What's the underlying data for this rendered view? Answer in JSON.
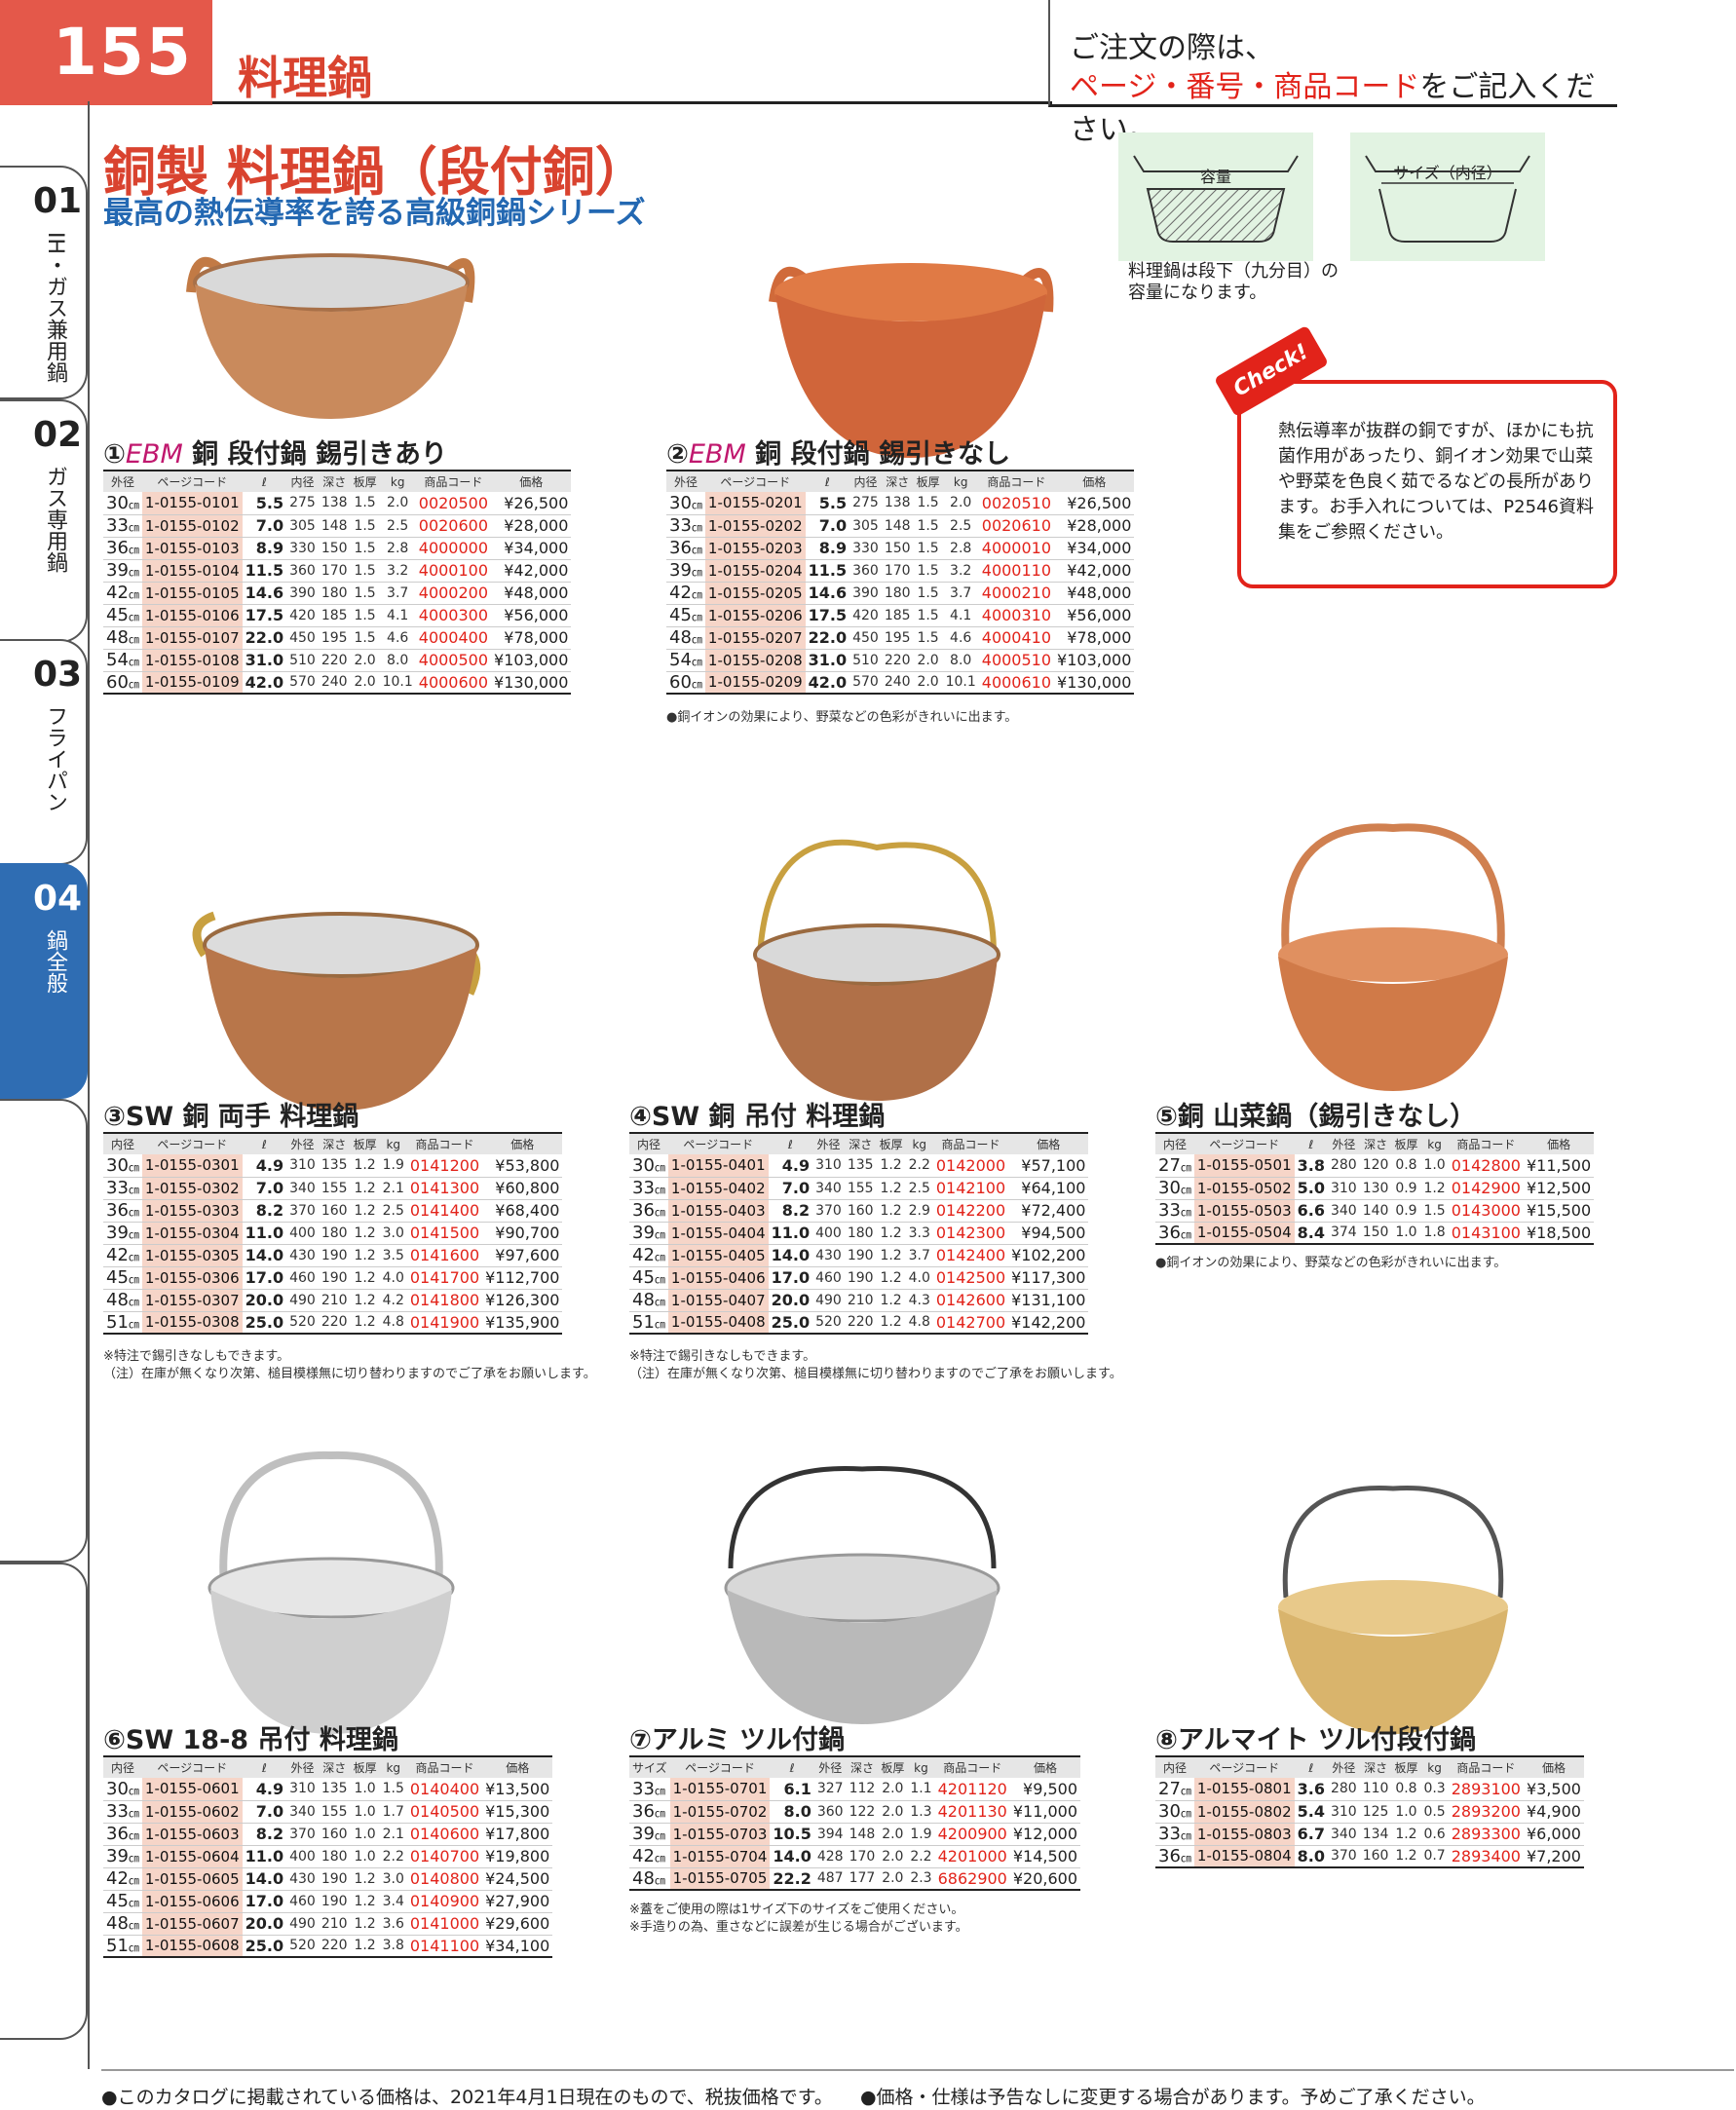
{
  "header": {
    "page_number": "155",
    "category": "料理鍋",
    "order_line1": "ご注文の際は、",
    "order_line2_red": "ページ・番号・商品コード",
    "order_line2_rest": "をご記入ください。"
  },
  "section": {
    "title": "銅製 料理鍋（段付銅）",
    "subtitle": "最高の熱伝導率を誇る高級銅鍋シリーズ"
  },
  "tabs": [
    {
      "num": "01",
      "label": "IH・ガス兼用鍋"
    },
    {
      "num": "02",
      "label": "ガス専用鍋"
    },
    {
      "num": "03",
      "label": "フライパン"
    },
    {
      "num": "04",
      "label": "鍋全般"
    }
  ],
  "diagrams": {
    "capacity_label": "容量",
    "size_label": "サイズ（内径）",
    "note": "料理鍋は段下（九分目）の容量になります。"
  },
  "check": {
    "badge": "Check!",
    "text": "熱伝導率が抜群の銅ですが、ほかにも抗菌作用があったり、銅イオン効果で山菜や野菜を色良く茹でるなどの長所があります。お手入れについては、P2546資料集をご参照ください。"
  },
  "headers": {
    "outer": "外径",
    "inner": "内径",
    "size": "サイズ",
    "page_code": "ページコード",
    "cap": "ℓ",
    "outer2": "外径",
    "inner2": "内径",
    "depth": "深さ",
    "thick": "板厚",
    "kg": "kg",
    "code": "商品コード",
    "price": "価格",
    "cm": "㎝"
  },
  "products": [
    {
      "no": "①",
      "brand": "EBM",
      "name": " 銅 段付鍋 錫引きあり",
      "h1": "外径",
      "h3": "内径",
      "rows": [
        [
          "30",
          "1-0155-0101",
          "5.5",
          "275",
          "138",
          "1.5",
          "2.0",
          "0020500",
          "¥26,500"
        ],
        [
          "33",
          "1-0155-0102",
          "7.0",
          "305",
          "148",
          "1.5",
          "2.5",
          "0020600",
          "¥28,000"
        ],
        [
          "36",
          "1-0155-0103",
          "8.9",
          "330",
          "150",
          "1.5",
          "2.8",
          "4000000",
          "¥34,000"
        ],
        [
          "39",
          "1-0155-0104",
          "11.5",
          "360",
          "170",
          "1.5",
          "3.2",
          "4000100",
          "¥42,000"
        ],
        [
          "42",
          "1-0155-0105",
          "14.6",
          "390",
          "180",
          "1.5",
          "3.7",
          "4000200",
          "¥48,000"
        ],
        [
          "45",
          "1-0155-0106",
          "17.5",
          "420",
          "185",
          "1.5",
          "4.1",
          "4000300",
          "¥56,000"
        ],
        [
          "48",
          "1-0155-0107",
          "22.0",
          "450",
          "195",
          "1.5",
          "4.6",
          "4000400",
          "¥78,000"
        ],
        [
          "54",
          "1-0155-0108",
          "31.0",
          "510",
          "220",
          "2.0",
          "8.0",
          "4000500",
          "¥103,000"
        ],
        [
          "60",
          "1-0155-0109",
          "42.0",
          "570",
          "240",
          "2.0",
          "10.1",
          "4000600",
          "¥130,000"
        ]
      ],
      "notes": []
    },
    {
      "no": "②",
      "brand": "EBM",
      "name": " 銅 段付鍋 錫引きなし",
      "h1": "外径",
      "h3": "内径",
      "rows": [
        [
          "30",
          "1-0155-0201",
          "5.5",
          "275",
          "138",
          "1.5",
          "2.0",
          "0020510",
          "¥26,500"
        ],
        [
          "33",
          "1-0155-0202",
          "7.0",
          "305",
          "148",
          "1.5",
          "2.5",
          "0020610",
          "¥28,000"
        ],
        [
          "36",
          "1-0155-0203",
          "8.9",
          "330",
          "150",
          "1.5",
          "2.8",
          "4000010",
          "¥34,000"
        ],
        [
          "39",
          "1-0155-0204",
          "11.5",
          "360",
          "170",
          "1.5",
          "3.2",
          "4000110",
          "¥42,000"
        ],
        [
          "42",
          "1-0155-0205",
          "14.6",
          "390",
          "180",
          "1.5",
          "3.7",
          "4000210",
          "¥48,000"
        ],
        [
          "45",
          "1-0155-0206",
          "17.5",
          "420",
          "185",
          "1.5",
          "4.1",
          "4000310",
          "¥56,000"
        ],
        [
          "48",
          "1-0155-0207",
          "22.0",
          "450",
          "195",
          "1.5",
          "4.6",
          "4000410",
          "¥78,000"
        ],
        [
          "54",
          "1-0155-0208",
          "31.0",
          "510",
          "220",
          "2.0",
          "8.0",
          "4000510",
          "¥103,000"
        ],
        [
          "60",
          "1-0155-0209",
          "42.0",
          "570",
          "240",
          "2.0",
          "10.1",
          "4000610",
          "¥130,000"
        ]
      ],
      "notes": [
        "●銅イオンの効果により、野菜などの色彩がきれいに出ます。"
      ]
    },
    {
      "no": "③",
      "brand": "",
      "name": "SW 銅 両手 料理鍋",
      "h1": "内径",
      "h3": "外径",
      "rows": [
        [
          "30",
          "1-0155-0301",
          "4.9",
          "310",
          "135",
          "1.2",
          "1.9",
          "0141200",
          "¥53,800"
        ],
        [
          "33",
          "1-0155-0302",
          "7.0",
          "340",
          "155",
          "1.2",
          "2.1",
          "0141300",
          "¥60,800"
        ],
        [
          "36",
          "1-0155-0303",
          "8.2",
          "370",
          "160",
          "1.2",
          "2.5",
          "0141400",
          "¥68,400"
        ],
        [
          "39",
          "1-0155-0304",
          "11.0",
          "400",
          "180",
          "1.2",
          "3.0",
          "0141500",
          "¥90,700"
        ],
        [
          "42",
          "1-0155-0305",
          "14.0",
          "430",
          "190",
          "1.2",
          "3.5",
          "0141600",
          "¥97,600"
        ],
        [
          "45",
          "1-0155-0306",
          "17.0",
          "460",
          "190",
          "1.2",
          "4.0",
          "0141700",
          "¥112,700"
        ],
        [
          "48",
          "1-0155-0307",
          "20.0",
          "490",
          "210",
          "1.2",
          "4.2",
          "0141800",
          "¥126,300"
        ],
        [
          "51",
          "1-0155-0308",
          "25.0",
          "520",
          "220",
          "1.2",
          "4.8",
          "0141900",
          "¥135,900"
        ]
      ],
      "notes": [
        "※特注で錫引きなしもできます。",
        "（注）在庫が無くなり次第、槌目模様無に切り替わりますのでご了承をお願いします。"
      ]
    },
    {
      "no": "④",
      "brand": "",
      "name": "SW 銅 吊付 料理鍋",
      "h1": "内径",
      "h3": "外径",
      "rows": [
        [
          "30",
          "1-0155-0401",
          "4.9",
          "310",
          "135",
          "1.2",
          "2.2",
          "0142000",
          "¥57,100"
        ],
        [
          "33",
          "1-0155-0402",
          "7.0",
          "340",
          "155",
          "1.2",
          "2.5",
          "0142100",
          "¥64,100"
        ],
        [
          "36",
          "1-0155-0403",
          "8.2",
          "370",
          "160",
          "1.2",
          "2.9",
          "0142200",
          "¥72,400"
        ],
        [
          "39",
          "1-0155-0404",
          "11.0",
          "400",
          "180",
          "1.2",
          "3.3",
          "0142300",
          "¥94,500"
        ],
        [
          "42",
          "1-0155-0405",
          "14.0",
          "430",
          "190",
          "1.2",
          "3.7",
          "0142400",
          "¥102,200"
        ],
        [
          "45",
          "1-0155-0406",
          "17.0",
          "460",
          "190",
          "1.2",
          "4.0",
          "0142500",
          "¥117,300"
        ],
        [
          "48",
          "1-0155-0407",
          "20.0",
          "490",
          "210",
          "1.2",
          "4.3",
          "0142600",
          "¥131,100"
        ],
        [
          "51",
          "1-0155-0408",
          "25.0",
          "520",
          "220",
          "1.2",
          "4.8",
          "0142700",
          "¥142,200"
        ]
      ],
      "notes": [
        "※特注で錫引きなしもできます。",
        "（注）在庫が無くなり次第、槌目模様無に切り替わりますのでご了承をお願いします。"
      ]
    },
    {
      "no": "⑤",
      "brand": "",
      "name": "銅 山菜鍋（錫引きなし）",
      "h1": "内径",
      "h3": "外径",
      "rows": [
        [
          "27",
          "1-0155-0501",
          "3.8",
          "280",
          "120",
          "0.8",
          "1.0",
          "0142800",
          "¥11,500"
        ],
        [
          "30",
          "1-0155-0502",
          "5.0",
          "310",
          "130",
          "0.9",
          "1.2",
          "0142900",
          "¥12,500"
        ],
        [
          "33",
          "1-0155-0503",
          "6.6",
          "340",
          "140",
          "0.9",
          "1.5",
          "0143000",
          "¥15,500"
        ],
        [
          "36",
          "1-0155-0504",
          "8.4",
          "374",
          "150",
          "1.0",
          "1.8",
          "0143100",
          "¥18,500"
        ]
      ],
      "notes": [
        "●銅イオンの効果により、野菜などの色彩がきれいに出ます。"
      ]
    },
    {
      "no": "⑥",
      "brand": "",
      "name": "SW 18-8 吊付 料理鍋",
      "h1": "内径",
      "h3": "外径",
      "rows": [
        [
          "30",
          "1-0155-0601",
          "4.9",
          "310",
          "135",
          "1.0",
          "1.5",
          "0140400",
          "¥13,500"
        ],
        [
          "33",
          "1-0155-0602",
          "7.0",
          "340",
          "155",
          "1.0",
          "1.7",
          "0140500",
          "¥15,300"
        ],
        [
          "36",
          "1-0155-0603",
          "8.2",
          "370",
          "160",
          "1.0",
          "2.1",
          "0140600",
          "¥17,800"
        ],
        [
          "39",
          "1-0155-0604",
          "11.0",
          "400",
          "180",
          "1.0",
          "2.2",
          "0140700",
          "¥19,800"
        ],
        [
          "42",
          "1-0155-0605",
          "14.0",
          "430",
          "190",
          "1.2",
          "3.0",
          "0140800",
          "¥24,500"
        ],
        [
          "45",
          "1-0155-0606",
          "17.0",
          "460",
          "190",
          "1.2",
          "3.4",
          "0140900",
          "¥27,900"
        ],
        [
          "48",
          "1-0155-0607",
          "20.0",
          "490",
          "210",
          "1.2",
          "3.6",
          "0141000",
          "¥29,600"
        ],
        [
          "51",
          "1-0155-0608",
          "25.0",
          "520",
          "220",
          "1.2",
          "3.8",
          "0141100",
          "¥34,100"
        ]
      ],
      "notes": []
    },
    {
      "no": "⑦",
      "brand": "",
      "name": "アルミ ツル付鍋",
      "h1": "サイズ",
      "h3": "外径",
      "rows": [
        [
          "33",
          "1-0155-0701",
          "6.1",
          "327",
          "112",
          "2.0",
          "1.1",
          "4201120",
          "¥9,500"
        ],
        [
          "36",
          "1-0155-0702",
          "8.0",
          "360",
          "122",
          "2.0",
          "1.3",
          "4201130",
          "¥11,000"
        ],
        [
          "39",
          "1-0155-0703",
          "10.5",
          "394",
          "148",
          "2.0",
          "1.9",
          "4200900",
          "¥12,000"
        ],
        [
          "42",
          "1-0155-0704",
          "14.0",
          "428",
          "170",
          "2.0",
          "2.2",
          "4201000",
          "¥14,500"
        ],
        [
          "48",
          "1-0155-0705",
          "22.2",
          "487",
          "177",
          "2.0",
          "2.3",
          "6862900",
          "¥20,600"
        ]
      ],
      "notes": [
        "※蓋をご使用の際は1サイズ下のサイズをご使用ください。",
        "※手造りの為、重さなどに誤差が生じる場合がございます。"
      ]
    },
    {
      "no": "⑧",
      "brand": "",
      "name": "アルマイト ツル付段付鍋",
      "h1": "内径",
      "h3": "外径",
      "rows": [
        [
          "27",
          "1-0155-0801",
          "3.6",
          "280",
          "110",
          "0.8",
          "0.3",
          "2893100",
          "¥3,500"
        ],
        [
          "30",
          "1-0155-0802",
          "5.4",
          "310",
          "125",
          "1.0",
          "0.5",
          "2893200",
          "¥4,900"
        ],
        [
          "33",
          "1-0155-0803",
          "6.7",
          "340",
          "134",
          "1.2",
          "0.6",
          "2893300",
          "¥6,000"
        ],
        [
          "36",
          "1-0155-0804",
          "8.0",
          "370",
          "160",
          "1.2",
          "0.7",
          "2893400",
          "¥7,200"
        ]
      ],
      "notes": []
    }
  ],
  "footer": {
    "left": "●このカタログに掲載されている価格は、2021年4月1日現在のもので、税抜価格です。",
    "right": "●価格・仕様は予告なしに変更する場合があります。予めご了承ください。"
  }
}
